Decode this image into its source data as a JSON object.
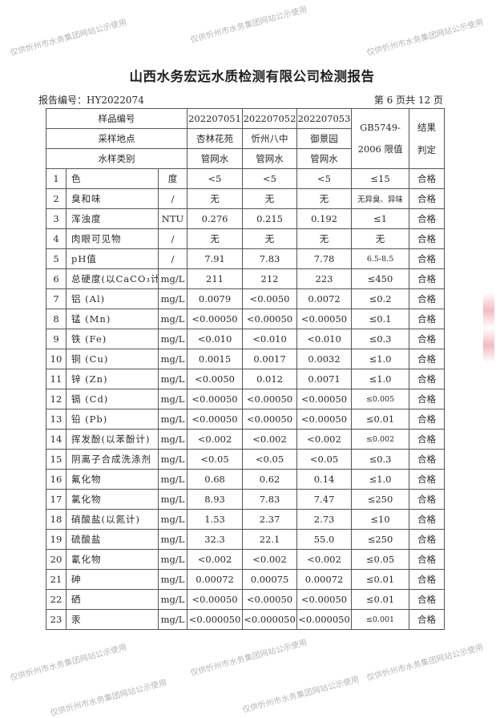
{
  "title": "山西水务宏远水质检测有限公司检测报告",
  "report_no": "报告编号：HY2022074",
  "page_info": "第 6 页共 12 页",
  "watermark": "仅供忻州市水务集团网站公示使用",
  "header": {
    "sample_no_label": "样品编号",
    "location_label": "采样地点",
    "type_label": "水样类别",
    "samples": [
      {
        "no": "202207051",
        "location": "杏林花苑",
        "type": "管网水"
      },
      {
        "no": "202207052",
        "location": "忻州八中",
        "type": "管网水"
      },
      {
        "no": "202207053",
        "location": "御景园",
        "type": "管网水"
      }
    ],
    "limit_label_1": "GB5749-",
    "limit_label_2": "2006 限值",
    "result_label_1": "结果",
    "result_label_2": "判定"
  },
  "rows": [
    {
      "n": "1",
      "item": "色",
      "unit": "度",
      "v": [
        "<5",
        "<5",
        "<5"
      ],
      "limit": "≤15",
      "result": "合格"
    },
    {
      "n": "2",
      "item": "臭和味",
      "unit": "/",
      "v": [
        "无",
        "无",
        "无"
      ],
      "limit": "无异臭、异味",
      "result": "合格"
    },
    {
      "n": "3",
      "item": "浑浊度",
      "unit": "NTU",
      "v": [
        "0.276",
        "0.215",
        "0.192"
      ],
      "limit": "≤1",
      "result": "合格"
    },
    {
      "n": "4",
      "item": "肉眼可见物",
      "unit": "/",
      "v": [
        "无",
        "无",
        "无"
      ],
      "limit": "无",
      "result": "合格"
    },
    {
      "n": "5",
      "item": "pH值",
      "unit": "/",
      "v": [
        "7.91",
        "7.83",
        "7.78"
      ],
      "limit": "6.5-8.5",
      "result": "合格"
    },
    {
      "n": "6",
      "item": "总硬度(以CaCO₃计)",
      "unit": "mg/L",
      "v": [
        "211",
        "212",
        "223"
      ],
      "limit": "≤450",
      "result": "合格"
    },
    {
      "n": "7",
      "item": "铝 (Al)",
      "unit": "mg/L",
      "v": [
        "0.0079",
        "<0.0050",
        "0.0072"
      ],
      "limit": "≤0.2",
      "result": "合格"
    },
    {
      "n": "8",
      "item": "锰 (Mn)",
      "unit": "mg/L",
      "v": [
        "<0.00050",
        "<0.00050",
        "<0.00050"
      ],
      "limit": "≤0.1",
      "result": "合格"
    },
    {
      "n": "9",
      "item": "铁 (Fe)",
      "unit": "mg/L",
      "v": [
        "<0.010",
        "<0.010",
        "<0.010"
      ],
      "limit": "≤0.3",
      "result": "合格"
    },
    {
      "n": "10",
      "item": "铜 (Cu)",
      "unit": "mg/L",
      "v": [
        "0.0015",
        "0.0017",
        "0.0032"
      ],
      "limit": "≤1.0",
      "result": "合格"
    },
    {
      "n": "11",
      "item": "锌 (Zn)",
      "unit": "mg/L",
      "v": [
        "<0.0050",
        "0.012",
        "0.0071"
      ],
      "limit": "≤1.0",
      "result": "合格"
    },
    {
      "n": "12",
      "item": "镉 (Cd)",
      "unit": "mg/L",
      "v": [
        "<0.00050",
        "<0.00050",
        "<0.00050"
      ],
      "limit": "≤0.005",
      "result": "合格"
    },
    {
      "n": "13",
      "item": "铅 (Pb)",
      "unit": "mg/L",
      "v": [
        "<0.00050",
        "<0.00050",
        "<0.00050"
      ],
      "limit": "≤0.01",
      "result": "合格"
    },
    {
      "n": "14",
      "item": "挥发酚(以苯酚计)",
      "unit": "mg/L",
      "v": [
        "<0.002",
        "<0.002",
        "<0.002"
      ],
      "limit": "≤0.002",
      "result": "合格"
    },
    {
      "n": "15",
      "item": "阴离子合成洗涤剂",
      "unit": "mg/L",
      "v": [
        "<0.05",
        "<0.05",
        "<0.05"
      ],
      "limit": "≤0.3",
      "result": "合格"
    },
    {
      "n": "16",
      "item": "氟化物",
      "unit": "mg/L",
      "v": [
        "0.68",
        "0.62",
        "0.14"
      ],
      "limit": "≤1.0",
      "result": "合格"
    },
    {
      "n": "17",
      "item": "氯化物",
      "unit": "mg/L",
      "v": [
        "8.93",
        "7.83",
        "7.47"
      ],
      "limit": "≤250",
      "result": "合格"
    },
    {
      "n": "18",
      "item": "硝酸盐(以氮计)",
      "unit": "mg/L",
      "v": [
        "1.53",
        "2.37",
        "2.73"
      ],
      "limit": "≤10",
      "result": "合格"
    },
    {
      "n": "19",
      "item": "硫酸盐",
      "unit": "mg/L",
      "v": [
        "32.3",
        "22.1",
        "55.0"
      ],
      "limit": "≤250",
      "result": "合格"
    },
    {
      "n": "20",
      "item": "氰化物",
      "unit": "mg/L",
      "v": [
        "<0.002",
        "<0.002",
        "<0.002"
      ],
      "limit": "≤0.05",
      "result": "合格"
    },
    {
      "n": "21",
      "item": "砷",
      "unit": "mg/L",
      "v": [
        "0.00072",
        "0.00075",
        "0.00072"
      ],
      "limit": "≤0.01",
      "result": "合格"
    },
    {
      "n": "22",
      "item": "硒",
      "unit": "mg/L",
      "v": [
        "<0.00050",
        "<0.00050",
        "<0.00050"
      ],
      "limit": "≤0.01",
      "result": "合格"
    },
    {
      "n": "23",
      "item": "汞",
      "unit": "mg/L",
      "v": [
        "<0.000050",
        "<0.000050",
        "<0.000050"
      ],
      "limit": "≤0.001",
      "result": "合格"
    }
  ]
}
